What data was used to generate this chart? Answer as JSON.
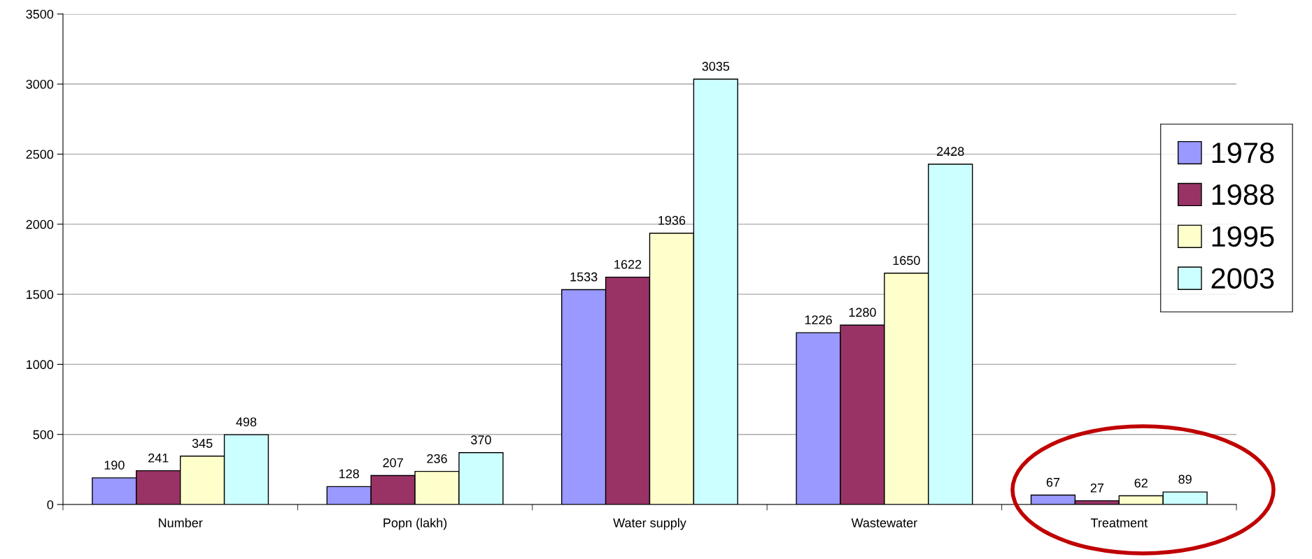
{
  "chart_data": {
    "type": "bar",
    "categories": [
      "Number",
      "Popn (lakh)",
      "Water supply",
      "Wastewater",
      "Treatment"
    ],
    "series": [
      {
        "name": "1978",
        "color": "#9999ff",
        "values": [
          190,
          128,
          1533,
          1226,
          67
        ]
      },
      {
        "name": "1988",
        "color": "#993366",
        "values": [
          241,
          207,
          1622,
          1280,
          27
        ]
      },
      {
        "name": "1995",
        "color": "#ffffcc",
        "values": [
          345,
          236,
          1936,
          1650,
          62
        ]
      },
      {
        "name": "2003",
        "color": "#ccffff",
        "values": [
          498,
          370,
          3035,
          2428,
          89
        ]
      }
    ],
    "ylim": [
      0,
      3500
    ],
    "yticks": [
      0,
      500,
      1000,
      1500,
      2000,
      2500,
      3000,
      3500
    ],
    "grid": "y",
    "legend": "right",
    "data_labels": true
  }
}
